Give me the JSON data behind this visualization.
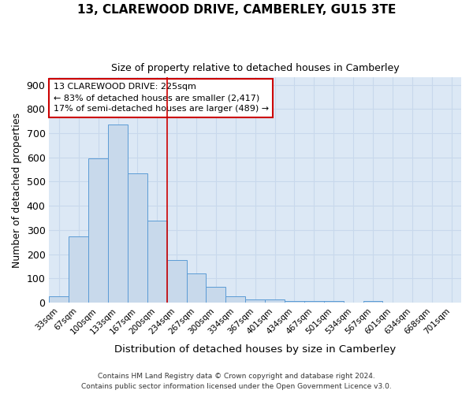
{
  "title": "13, CLAREWOOD DRIVE, CAMBERLEY, GU15 3TE",
  "subtitle": "Size of property relative to detached houses in Camberley",
  "xlabel": "Distribution of detached houses by size in Camberley",
  "ylabel": "Number of detached properties",
  "categories": [
    "33sqm",
    "67sqm",
    "100sqm",
    "133sqm",
    "167sqm",
    "200sqm",
    "234sqm",
    "267sqm",
    "300sqm",
    "334sqm",
    "367sqm",
    "401sqm",
    "434sqm",
    "467sqm",
    "501sqm",
    "534sqm",
    "567sqm",
    "601sqm",
    "634sqm",
    "668sqm",
    "701sqm"
  ],
  "values": [
    25,
    275,
    595,
    735,
    535,
    340,
    175,
    120,
    67,
    25,
    13,
    12,
    8,
    8,
    8,
    0,
    7,
    0,
    0,
    0,
    0
  ],
  "bar_color": "#c8d9eb",
  "bar_edge_color": "#5b9bd5",
  "grid_color": "#c8d8ec",
  "plot_bg_color": "#dce8f5",
  "fig_bg_color": "#ffffff",
  "vline_color": "#cc0000",
  "annotation_text": "13 CLAREWOOD DRIVE: 225sqm\n← 83% of detached houses are smaller (2,417)\n17% of semi-detached houses are larger (489) →",
  "annotation_box_color": "#ffffff",
  "annotation_box_edge": "#cc0000",
  "ylim": [
    0,
    930
  ],
  "yticks": [
    0,
    100,
    200,
    300,
    400,
    500,
    600,
    700,
    800,
    900
  ],
  "footnote1": "Contains HM Land Registry data © Crown copyright and database right 2024.",
  "footnote2": "Contains public sector information licensed under the Open Government Licence v3.0."
}
